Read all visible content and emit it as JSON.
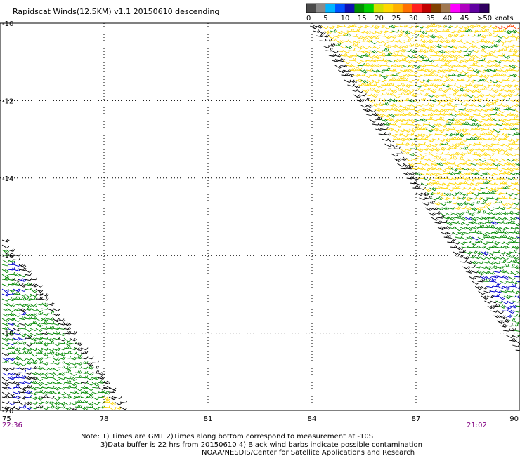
{
  "chart_data": {
    "type": "scatter",
    "title": "Rapidscat Winds(12.5KM) v1.1 20150610 descending",
    "xlim": [
      75,
      90
    ],
    "ylim": [
      -20,
      -10
    ],
    "x_ticks": [
      "75",
      "78",
      "81",
      "84",
      "87",
      "90"
    ],
    "y_ticks": [
      "-10",
      "-12",
      "-14",
      "-16",
      "-18",
      "-20"
    ],
    "grid": true,
    "colorbar": {
      "labels": [
        "0",
        "5",
        "10",
        "15",
        "20",
        "25",
        "30",
        "35",
        "40",
        "45",
        ">50 knots"
      ],
      "colors": [
        "#4a4a4a",
        "#8a8a8a",
        "#00b4ff",
        "#0050ff",
        "#1010b0",
        "#009000",
        "#00d000",
        "#d0e000",
        "#ffd700",
        "#ffb000",
        "#ff7000",
        "#ff2020",
        "#c00000",
        "#804000",
        "#a07850",
        "#ff00ff",
        "#b000c0",
        "#6000a0",
        "#300060"
      ]
    },
    "wind_speed_legend_colors": {
      "contaminated": "#000000",
      "10-15": "#0000cc",
      "15-20": "#008800",
      "20-25": "#ffd700"
    },
    "swaths": [
      {
        "lon_range": [
          75,
          78.7
        ],
        "lat_range": [
          -20,
          -15.4
        ],
        "dominant_speed": "15-20",
        "time_label": "22:36"
      },
      {
        "lon_range": [
          84,
          90
        ],
        "lat_range": [
          -19,
          -10
        ],
        "dominant_speed": "20-25",
        "time_label": "21:02"
      }
    ],
    "time_labels": [
      "22:36",
      "21:02"
    ]
  },
  "notes": {
    "line1": "Note: 1) Times are GMT 2)Times along bottom correspond to measurement at -10S",
    "line2": "3)Data buffer is 22 hrs from 20150610 4) Black wind barbs indicate possible contamination",
    "line3": "NOAA/NESDIS/Center for Satellite Applications and Research"
  },
  "colors": {
    "time_label": "#800080",
    "grid": "#000000"
  }
}
